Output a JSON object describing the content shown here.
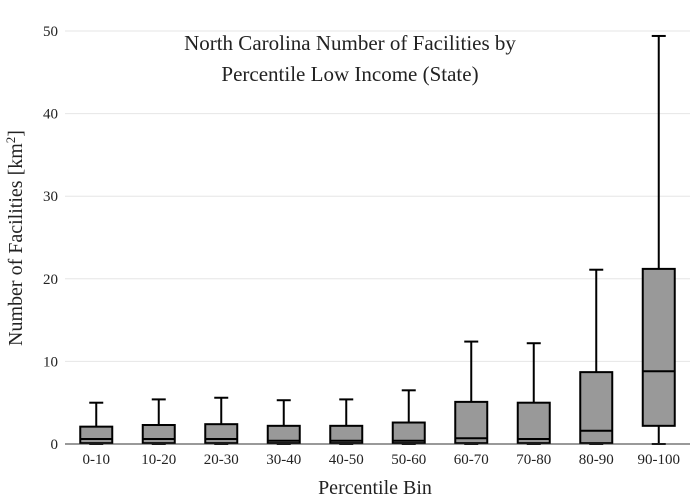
{
  "chart_data": {
    "type": "box",
    "title": [
      "North Carolina Number of Facilities by",
      "Percentile Low Income (State)"
    ],
    "xlabel": "Percentile Bin",
    "ylabel": "Number of Facilities  [km",
    "ylabel_sup": "2",
    "ylabel_close": "]",
    "ylim": [
      0,
      50
    ],
    "yticks": [
      0,
      10,
      20,
      30,
      40,
      50
    ],
    "grid": true,
    "box_color": "#999999",
    "categories": [
      "0-10",
      "10-20",
      "20-30",
      "30-40",
      "40-50",
      "50-60",
      "60-70",
      "70-80",
      "80-90",
      "90-100"
    ],
    "boxes": [
      {
        "min": 0,
        "q1": 0.1,
        "median": 0.6,
        "q3": 2.1,
        "max": 5.0
      },
      {
        "min": 0,
        "q1": 0.1,
        "median": 0.6,
        "q3": 2.3,
        "max": 5.4
      },
      {
        "min": 0,
        "q1": 0.1,
        "median": 0.6,
        "q3": 2.4,
        "max": 5.6
      },
      {
        "min": 0,
        "q1": 0.1,
        "median": 0.4,
        "q3": 2.2,
        "max": 5.3
      },
      {
        "min": 0,
        "q1": 0.1,
        "median": 0.4,
        "q3": 2.2,
        "max": 5.4
      },
      {
        "min": 0,
        "q1": 0.1,
        "median": 0.4,
        "q3": 2.6,
        "max": 6.5
      },
      {
        "min": 0,
        "q1": 0.1,
        "median": 0.7,
        "q3": 5.1,
        "max": 12.4
      },
      {
        "min": 0,
        "q1": 0.1,
        "median": 0.6,
        "q3": 5.0,
        "max": 12.2
      },
      {
        "min": 0,
        "q1": 0.1,
        "median": 1.6,
        "q3": 8.7,
        "max": 21.1
      },
      {
        "min": 0,
        "q1": 2.2,
        "median": 8.8,
        "q3": 21.2,
        "max": 49.4
      }
    ]
  }
}
